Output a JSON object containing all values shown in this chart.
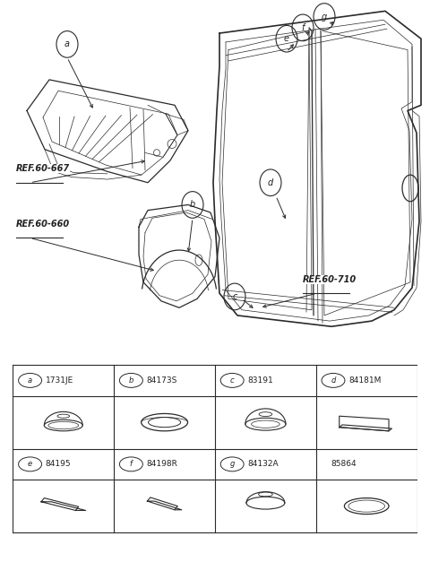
{
  "bg_color": "#ffffff",
  "fig_width": 4.8,
  "fig_height": 6.56,
  "dpi": 100,
  "lc": "#2a2a2a",
  "tc": "#222222",
  "header_row1": [
    {
      "label": "a",
      "part": "1731JE"
    },
    {
      "label": "b",
      "part": "84173S"
    },
    {
      "label": "c",
      "part": "83191"
    },
    {
      "label": "d",
      "part": "84181M"
    }
  ],
  "header_row2": [
    {
      "label": "e",
      "part": "84195"
    },
    {
      "label": "f",
      "part": "84198R"
    },
    {
      "label": "g",
      "part": "84132A"
    },
    {
      "label": "",
      "part": "85864"
    }
  ]
}
